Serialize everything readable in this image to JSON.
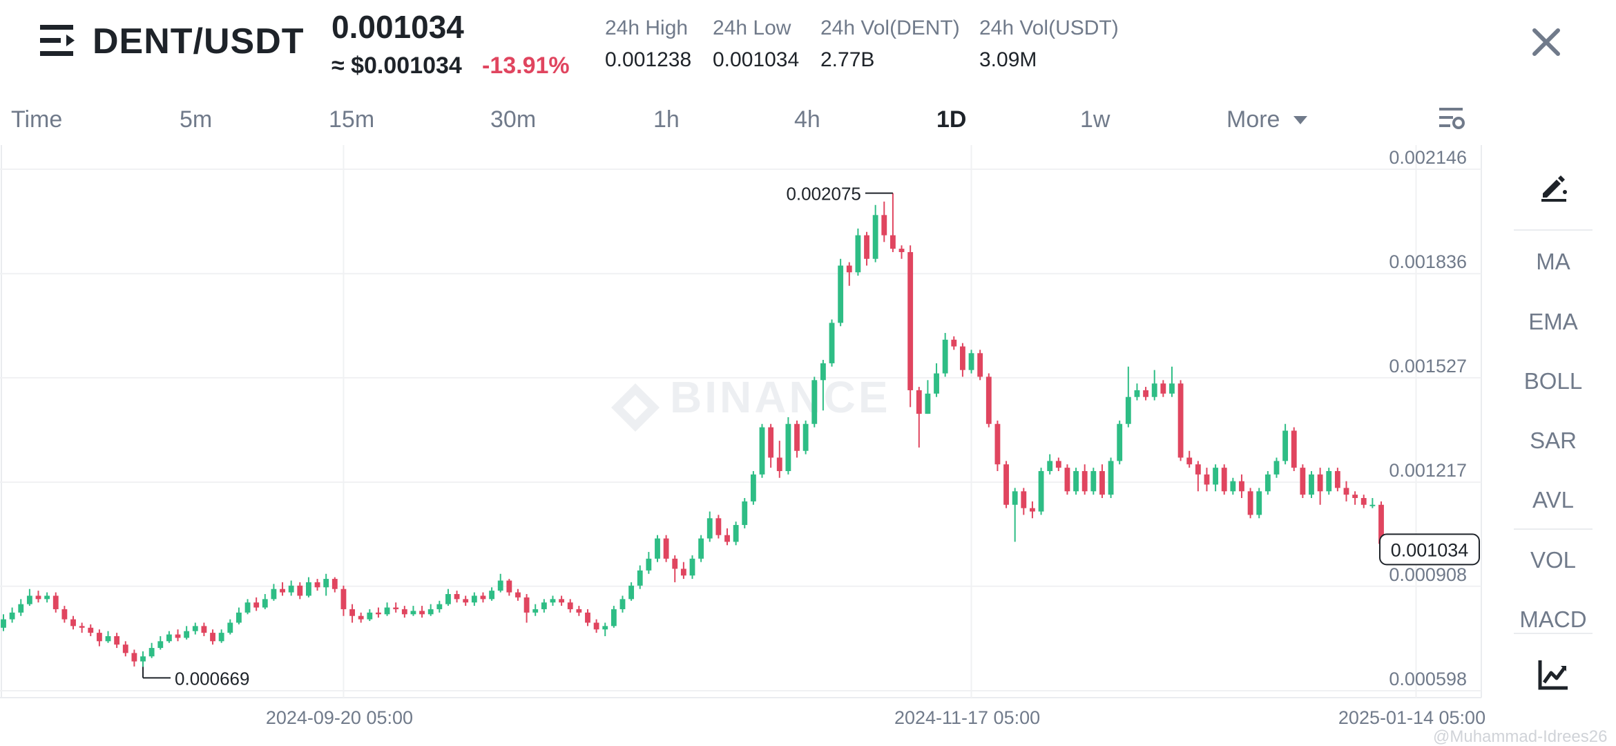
{
  "header": {
    "pair": "DENT/USDT",
    "price": "0.001034",
    "usd_price": "≈ $0.001034",
    "change": "-13.91%",
    "stats": [
      {
        "label": "24h High",
        "value": "0.001238"
      },
      {
        "label": "24h Low",
        "value": "0.001034"
      },
      {
        "label": "24h Vol(DENT)",
        "value": "2.77B"
      },
      {
        "label": "24h Vol(USDT)",
        "value": "3.09M"
      }
    ]
  },
  "tabs": [
    "Time",
    "5m",
    "15m",
    "30m",
    "1h",
    "4h",
    "1D",
    "1w",
    "More"
  ],
  "active_tab": "1D",
  "indicators": [
    "MA",
    "EMA",
    "BOLL",
    "SAR",
    "AVL",
    "VOL",
    "MACD"
  ],
  "watermark": "BINANCE",
  "credit": "@Muhammad-Idrees26",
  "colors": {
    "up": "#2ebd85",
    "down": "#e0455f",
    "grid": "#f0f1f3",
    "axis_text": "#707a8a"
  },
  "chart_data": {
    "type": "candlestick",
    "y_ticks": [
      "0.002146",
      "0.001836",
      "0.001527",
      "0.001217",
      "0.000908",
      "0.000598"
    ],
    "x_ticks": [
      "2024-09-20 05:00",
      "2024-11-17 05:00",
      "2025-01-14 05:00"
    ],
    "ylim": [
      0.000598,
      0.002146
    ],
    "high_label": "0.002075",
    "low_label": "0.000669",
    "last_price_label": "0.001034",
    "candles": [
      [
        0.000785,
        0.00081,
        0.000825,
        0.000775
      ],
      [
        0.00081,
        0.00083,
        0.000845,
        0.0008
      ],
      [
        0.00083,
        0.000855,
        0.00087,
        0.00082
      ],
      [
        0.000855,
        0.00088,
        0.0009,
        0.00085
      ],
      [
        0.00088,
        0.00087,
        0.000895,
        0.00086
      ],
      [
        0.00087,
        0.00088,
        0.00089,
        0.00086
      ],
      [
        0.00088,
        0.00084,
        0.00089,
        0.00083
      ],
      [
        0.00084,
        0.00081,
        0.00085,
        0.0008
      ],
      [
        0.00081,
        0.00079,
        0.00082,
        0.00078
      ],
      [
        0.00079,
        0.000785,
        0.0008,
        0.00077
      ],
      [
        0.000785,
        0.00077,
        0.000795,
        0.00076
      ],
      [
        0.00077,
        0.000745,
        0.00078,
        0.00073
      ],
      [
        0.000745,
        0.00076,
        0.000775,
        0.00074
      ],
      [
        0.00076,
        0.000735,
        0.00077,
        0.000725
      ],
      [
        0.000735,
        0.00071,
        0.000745,
        0.0007
      ],
      [
        0.00071,
        0.000685,
        0.00072,
        0.00067
      ],
      [
        0.000685,
        0.0007,
        0.000715,
        0.000669
      ],
      [
        0.0007,
        0.000725,
        0.00074,
        0.000695
      ],
      [
        0.000725,
        0.000745,
        0.00076,
        0.00072
      ],
      [
        0.000745,
        0.000765,
        0.000775,
        0.00074
      ],
      [
        0.000765,
        0.000755,
        0.00078,
        0.000745
      ],
      [
        0.000755,
        0.000775,
        0.00079,
        0.00075
      ],
      [
        0.000775,
        0.00079,
        0.0008,
        0.000765
      ],
      [
        0.00079,
        0.00077,
        0.0008,
        0.00076
      ],
      [
        0.00077,
        0.000745,
        0.00078,
        0.000735
      ],
      [
        0.000745,
        0.00077,
        0.00078,
        0.00074
      ],
      [
        0.00077,
        0.0008,
        0.00081,
        0.000765
      ],
      [
        0.0008,
        0.00083,
        0.000845,
        0.000795
      ],
      [
        0.00083,
        0.00086,
        0.00087,
        0.000825
      ],
      [
        0.00086,
        0.000845,
        0.000875,
        0.000835
      ],
      [
        0.000845,
        0.00087,
        0.000885,
        0.00084
      ],
      [
        0.00087,
        0.0009,
        0.000915,
        0.000865
      ],
      [
        0.0009,
        0.00089,
        0.00092,
        0.00088
      ],
      [
        0.00089,
        0.00091,
        0.000925,
        0.00088
      ],
      [
        0.00091,
        0.00088,
        0.00092,
        0.00087
      ],
      [
        0.00088,
        0.00092,
        0.000935,
        0.000875
      ],
      [
        0.00092,
        0.000905,
        0.00093,
        0.000895
      ],
      [
        0.000905,
        0.00093,
        0.000945,
        0.00088
      ],
      [
        0.00093,
        0.0009,
        0.000935,
        0.00089
      ],
      [
        0.0009,
        0.00084,
        0.00091,
        0.00082
      ],
      [
        0.00084,
        0.00082,
        0.000855,
        0.0008
      ],
      [
        0.00082,
        0.00081,
        0.00083,
        0.0008
      ],
      [
        0.00081,
        0.00083,
        0.00084,
        0.000805
      ],
      [
        0.00083,
        0.000825,
        0.000845,
        0.000815
      ],
      [
        0.000825,
        0.000845,
        0.00086,
        0.00082
      ],
      [
        0.000845,
        0.00084,
        0.00086,
        0.00083
      ],
      [
        0.00084,
        0.000825,
        0.00085,
        0.000815
      ],
      [
        0.000825,
        0.000835,
        0.00085,
        0.00082
      ],
      [
        0.000835,
        0.000825,
        0.00085,
        0.000815
      ],
      [
        0.000825,
        0.00084,
        0.000855,
        0.00082
      ],
      [
        0.00084,
        0.000855,
        0.000865,
        0.00083
      ],
      [
        0.000855,
        0.000885,
        0.0009,
        0.00085
      ],
      [
        0.000885,
        0.00087,
        0.000895,
        0.00086
      ],
      [
        0.00087,
        0.00086,
        0.00088,
        0.00085
      ],
      [
        0.00086,
        0.00088,
        0.00089,
        0.00085
      ],
      [
        0.00088,
        0.00087,
        0.00089,
        0.00086
      ],
      [
        0.00087,
        0.000895,
        0.000905,
        0.000865
      ],
      [
        0.000895,
        0.000925,
        0.000945,
        0.00089
      ],
      [
        0.000925,
        0.00089,
        0.00093,
        0.00088
      ],
      [
        0.00089,
        0.000875,
        0.0009,
        0.000865
      ],
      [
        0.000875,
        0.00083,
        0.000885,
        0.0008
      ],
      [
        0.00083,
        0.00084,
        0.000855,
        0.00082
      ],
      [
        0.00084,
        0.00086,
        0.00087,
        0.00083
      ],
      [
        0.00086,
        0.00087,
        0.00088,
        0.00085
      ],
      [
        0.00087,
        0.00086,
        0.00088,
        0.00085
      ],
      [
        0.00086,
        0.00084,
        0.00087,
        0.00083
      ],
      [
        0.00084,
        0.00083,
        0.00085,
        0.00082
      ],
      [
        0.00083,
        0.0008,
        0.00084,
        0.00079
      ],
      [
        0.0008,
        0.00078,
        0.00081,
        0.00077
      ],
      [
        0.00078,
        0.00079,
        0.0008,
        0.00076
      ],
      [
        0.00079,
        0.00084,
        0.00085,
        0.000785
      ],
      [
        0.00084,
        0.00087,
        0.00088,
        0.00083
      ],
      [
        0.00087,
        0.00091,
        0.00092,
        0.000865
      ],
      [
        0.00091,
        0.000955,
        0.00097,
        0.0009
      ],
      [
        0.000955,
        0.00099,
        0.00101,
        0.000945
      ],
      [
        0.00099,
        0.00105,
        0.00106,
        0.00098
      ],
      [
        0.00105,
        0.00099,
        0.00106,
        0.00098
      ],
      [
        0.00099,
        0.00096,
        0.001,
        0.00092
      ],
      [
        0.00096,
        0.00094,
        0.00098,
        0.00093
      ],
      [
        0.00094,
        0.00099,
        0.001,
        0.00093
      ],
      [
        0.00099,
        0.00105,
        0.00106,
        0.00098
      ],
      [
        0.00105,
        0.00111,
        0.00113,
        0.00104
      ],
      [
        0.00111,
        0.00106,
        0.00112,
        0.00105
      ],
      [
        0.00106,
        0.00104,
        0.00108,
        0.00103
      ],
      [
        0.00104,
        0.00109,
        0.0011,
        0.00103
      ],
      [
        0.00109,
        0.00116,
        0.00117,
        0.00108
      ],
      [
        0.00116,
        0.00124,
        0.00125,
        0.00115
      ],
      [
        0.00124,
        0.00138,
        0.00139,
        0.00123
      ],
      [
        0.00138,
        0.00129,
        0.00139,
        0.00126
      ],
      [
        0.00129,
        0.00125,
        0.00134,
        0.00123
      ],
      [
        0.00125,
        0.00139,
        0.00141,
        0.00124
      ],
      [
        0.00139,
        0.00131,
        0.0014,
        0.00129
      ],
      [
        0.00131,
        0.00139,
        0.0014,
        0.0013
      ],
      [
        0.00139,
        0.00152,
        0.00153,
        0.00138
      ],
      [
        0.00152,
        0.00157,
        0.00158,
        0.00143
      ],
      [
        0.00157,
        0.00169,
        0.0017,
        0.00156
      ],
      [
        0.00169,
        0.00186,
        0.00188,
        0.00168
      ],
      [
        0.00186,
        0.00184,
        0.00187,
        0.0018
      ],
      [
        0.00184,
        0.00195,
        0.00197,
        0.00183
      ],
      [
        0.00195,
        0.00188,
        0.00196,
        0.00186
      ],
      [
        0.00188,
        0.00201,
        0.00204,
        0.00187
      ],
      [
        0.00201,
        0.00195,
        0.00205,
        0.00193
      ],
      [
        0.00195,
        0.00191,
        0.002075,
        0.0019
      ],
      [
        0.00191,
        0.0019,
        0.00192,
        0.00188
      ],
      [
        0.0019,
        0.00149,
        0.00192,
        0.00144
      ],
      [
        0.00149,
        0.00142,
        0.0015,
        0.00132
      ],
      [
        0.00142,
        0.00148,
        0.00152,
        0.00142
      ],
      [
        0.00148,
        0.00154,
        0.00157,
        0.00147
      ],
      [
        0.00154,
        0.00164,
        0.00166,
        0.00153
      ],
      [
        0.00164,
        0.00162,
        0.00165,
        0.00161
      ],
      [
        0.00162,
        0.00155,
        0.00163,
        0.00153
      ],
      [
        0.00155,
        0.0016,
        0.00161,
        0.00154
      ],
      [
        0.0016,
        0.00153,
        0.00161,
        0.00152
      ],
      [
        0.00153,
        0.00139,
        0.00154,
        0.00138
      ],
      [
        0.00139,
        0.00127,
        0.0014,
        0.00125
      ],
      [
        0.00127,
        0.00115,
        0.00128,
        0.00114
      ],
      [
        0.00115,
        0.00119,
        0.0012,
        0.00104
      ],
      [
        0.00119,
        0.00114,
        0.0012,
        0.00112
      ],
      [
        0.00114,
        0.00113,
        0.00116,
        0.00111
      ],
      [
        0.00113,
        0.00125,
        0.00126,
        0.00112
      ],
      [
        0.00125,
        0.00128,
        0.0013,
        0.00124
      ],
      [
        0.00128,
        0.00126,
        0.00129,
        0.00125
      ],
      [
        0.00126,
        0.00119,
        0.00127,
        0.00118
      ],
      [
        0.00119,
        0.00125,
        0.00126,
        0.00118
      ],
      [
        0.00125,
        0.00119,
        0.00127,
        0.00118
      ],
      [
        0.00119,
        0.00125,
        0.00126,
        0.00118
      ],
      [
        0.00125,
        0.00118,
        0.00127,
        0.00117
      ],
      [
        0.00118,
        0.00128,
        0.00129,
        0.00117
      ],
      [
        0.00128,
        0.00139,
        0.0014,
        0.00127
      ],
      [
        0.00139,
        0.00147,
        0.00156,
        0.00138
      ],
      [
        0.00147,
        0.00149,
        0.00151,
        0.00146
      ],
      [
        0.00149,
        0.00147,
        0.0015,
        0.00146
      ],
      [
        0.00147,
        0.00151,
        0.00155,
        0.00146
      ],
      [
        0.00151,
        0.00148,
        0.00152,
        0.00147
      ],
      [
        0.00148,
        0.00151,
        0.00156,
        0.00147
      ],
      [
        0.00151,
        0.00129,
        0.00152,
        0.00128
      ],
      [
        0.00129,
        0.00127,
        0.00131,
        0.00126
      ],
      [
        0.00127,
        0.00124,
        0.00128,
        0.00119
      ],
      [
        0.00124,
        0.00121,
        0.00126,
        0.00119
      ],
      [
        0.00121,
        0.00126,
        0.00127,
        0.00119
      ],
      [
        0.00126,
        0.00119,
        0.00127,
        0.00118
      ],
      [
        0.00119,
        0.00122,
        0.00123,
        0.00118
      ],
      [
        0.00122,
        0.00119,
        0.00124,
        0.00117
      ],
      [
        0.00119,
        0.00112,
        0.0012,
        0.00111
      ],
      [
        0.00112,
        0.00119,
        0.0012,
        0.00111
      ],
      [
        0.00119,
        0.00124,
        0.00125,
        0.00118
      ],
      [
        0.00124,
        0.00128,
        0.00129,
        0.00123
      ],
      [
        0.00128,
        0.00137,
        0.00139,
        0.00127
      ],
      [
        0.00137,
        0.00126,
        0.00138,
        0.00125
      ],
      [
        0.00126,
        0.00118,
        0.00127,
        0.00117
      ],
      [
        0.00118,
        0.00124,
        0.00125,
        0.00117
      ],
      [
        0.00124,
        0.00119,
        0.00126,
        0.00115
      ],
      [
        0.00119,
        0.00125,
        0.00126,
        0.00118
      ],
      [
        0.00125,
        0.0012,
        0.00126,
        0.00119
      ],
      [
        0.0012,
        0.00118,
        0.00122,
        0.00116
      ],
      [
        0.00118,
        0.00117,
        0.00119,
        0.00115
      ],
      [
        0.00117,
        0.00115,
        0.00118,
        0.00114
      ],
      [
        0.00115,
        0.00115,
        0.00117,
        0.00114
      ],
      [
        0.00115,
        0.001034,
        0.00116,
        0.001034
      ]
    ]
  }
}
